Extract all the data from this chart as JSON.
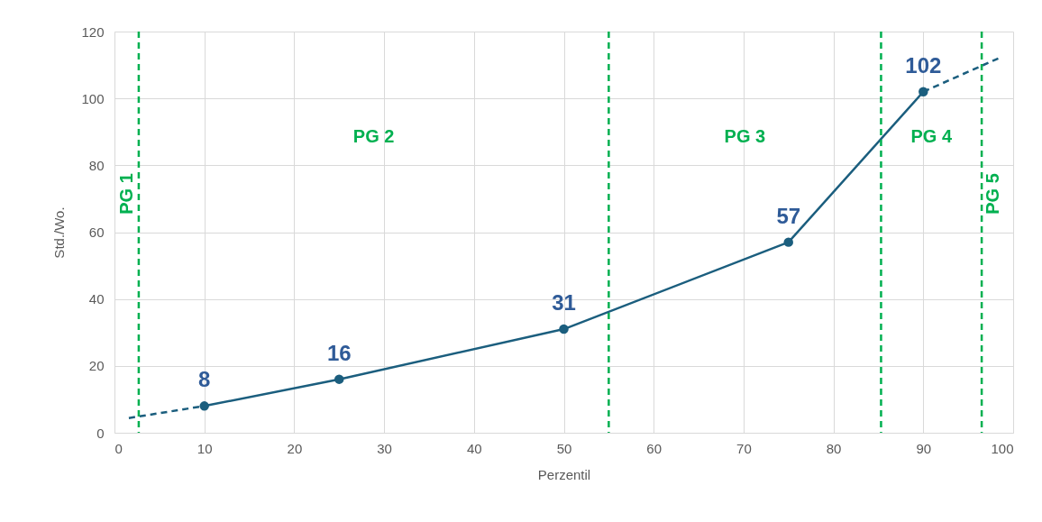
{
  "chart_data": {
    "type": "line",
    "xlabel": "Perzentil",
    "ylabel": "Std./Wo.",
    "xlim": [
      0,
      100
    ],
    "xticks": [
      0,
      10,
      20,
      30,
      40,
      50,
      60,
      70,
      80,
      90,
      100
    ],
    "ylim": [
      0,
      120
    ],
    "yticks": [
      0,
      20,
      40,
      60,
      80,
      100,
      120
    ],
    "grid": true,
    "series": [
      {
        "color": "#1b5e7e",
        "x": [
          1.6,
          10
        ],
        "values": [
          4.4,
          8
        ],
        "line_style": "dashed"
      },
      {
        "color": "#1b5e7e",
        "x": [
          10,
          25,
          50,
          75,
          90
        ],
        "values": [
          8,
          16,
          31,
          57,
          102
        ],
        "line_style": "solid",
        "marker": "circle",
        "value_labels": [
          "8",
          "16",
          "31",
          "57",
          "102"
        ]
      },
      {
        "color": "#1b5e7e",
        "x": [
          90,
          98.7
        ],
        "values": [
          102,
          112.4
        ],
        "line_style": "dashed"
      }
    ],
    "ref_lines": [
      {
        "axis": "x",
        "value": 2.7,
        "label": "PG 1",
        "color": "#00b050",
        "line_style": "dashed"
      },
      {
        "axis": "x",
        "value": 55,
        "color": "#00b050",
        "line_style": "dashed"
      },
      {
        "axis": "x",
        "value": 85.3,
        "color": "#00b050",
        "line_style": "dashed"
      },
      {
        "axis": "x",
        "value": 96.5,
        "label": "PG 5",
        "color": "#00b050",
        "line_style": "dashed"
      }
    ],
    "annotations": [
      "PG 2",
      "PG 3",
      "PG 4"
    ]
  }
}
